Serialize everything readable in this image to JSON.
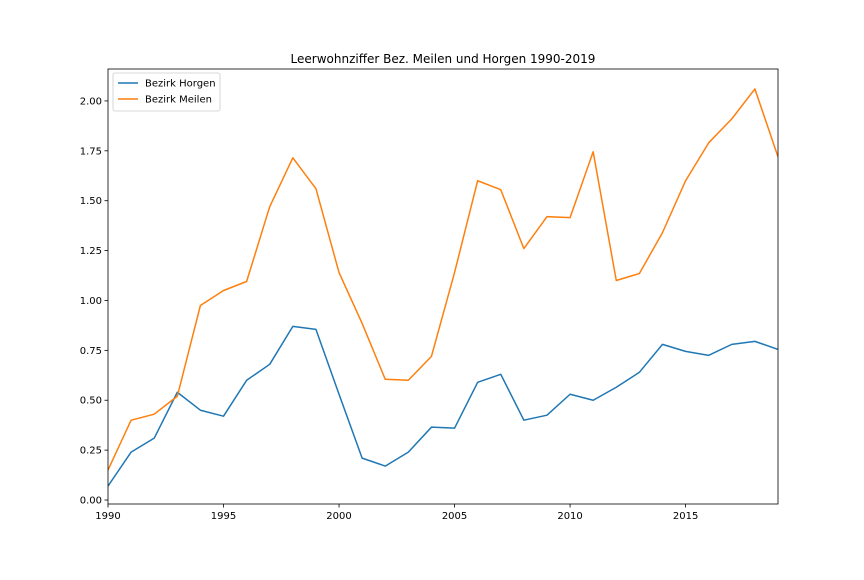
{
  "chart_data": {
    "type": "line",
    "title": "Leerwohnziffer Bez. Meilen und Horgen 1990-2019",
    "xlabel": "",
    "ylabel": "",
    "xlim": [
      1990,
      2019
    ],
    "ylim": [
      -0.02,
      2.16
    ],
    "x": [
      1990,
      1991,
      1992,
      1993,
      1994,
      1995,
      1996,
      1997,
      1998,
      1999,
      2000,
      2001,
      2002,
      2003,
      2004,
      2005,
      2006,
      2007,
      2008,
      2009,
      2010,
      2011,
      2012,
      2013,
      2014,
      2015,
      2016,
      2017,
      2018,
      2019
    ],
    "x_ticks": [
      1990,
      1995,
      2000,
      2005,
      2010,
      2015
    ],
    "x_tick_labels": [
      "1990",
      "1995",
      "2000",
      "2005",
      "2010",
      "2015"
    ],
    "y_ticks": [
      0.0,
      0.25,
      0.5,
      0.75,
      1.0,
      1.25,
      1.5,
      1.75,
      2.0
    ],
    "y_tick_labels": [
      "0.00",
      "0.25",
      "0.50",
      "0.75",
      "1.00",
      "1.25",
      "1.50",
      "1.75",
      "2.00"
    ],
    "grid": false,
    "legend_position": "top-left",
    "series": [
      {
        "name": "Bezirk Horgen",
        "color": "#1f77b4",
        "values": [
          0.07,
          0.24,
          0.31,
          0.54,
          0.45,
          0.42,
          0.6,
          0.68,
          0.87,
          0.855,
          0.53,
          0.21,
          0.17,
          0.24,
          0.365,
          0.36,
          0.59,
          0.63,
          0.4,
          0.425,
          0.53,
          0.5,
          0.565,
          0.64,
          0.78,
          0.745,
          0.725,
          0.78,
          0.795,
          0.755
        ]
      },
      {
        "name": "Bezirk Meilen",
        "color": "#ff7f0e",
        "values": [
          0.15,
          0.4,
          0.43,
          0.52,
          0.975,
          1.05,
          1.095,
          1.47,
          1.715,
          1.56,
          1.14,
          0.885,
          0.605,
          0.6,
          0.72,
          1.14,
          1.6,
          1.555,
          1.26,
          1.42,
          1.415,
          1.745,
          1.1,
          1.135,
          1.34,
          1.6,
          1.79,
          1.91,
          2.06,
          1.72
        ]
      }
    ]
  }
}
